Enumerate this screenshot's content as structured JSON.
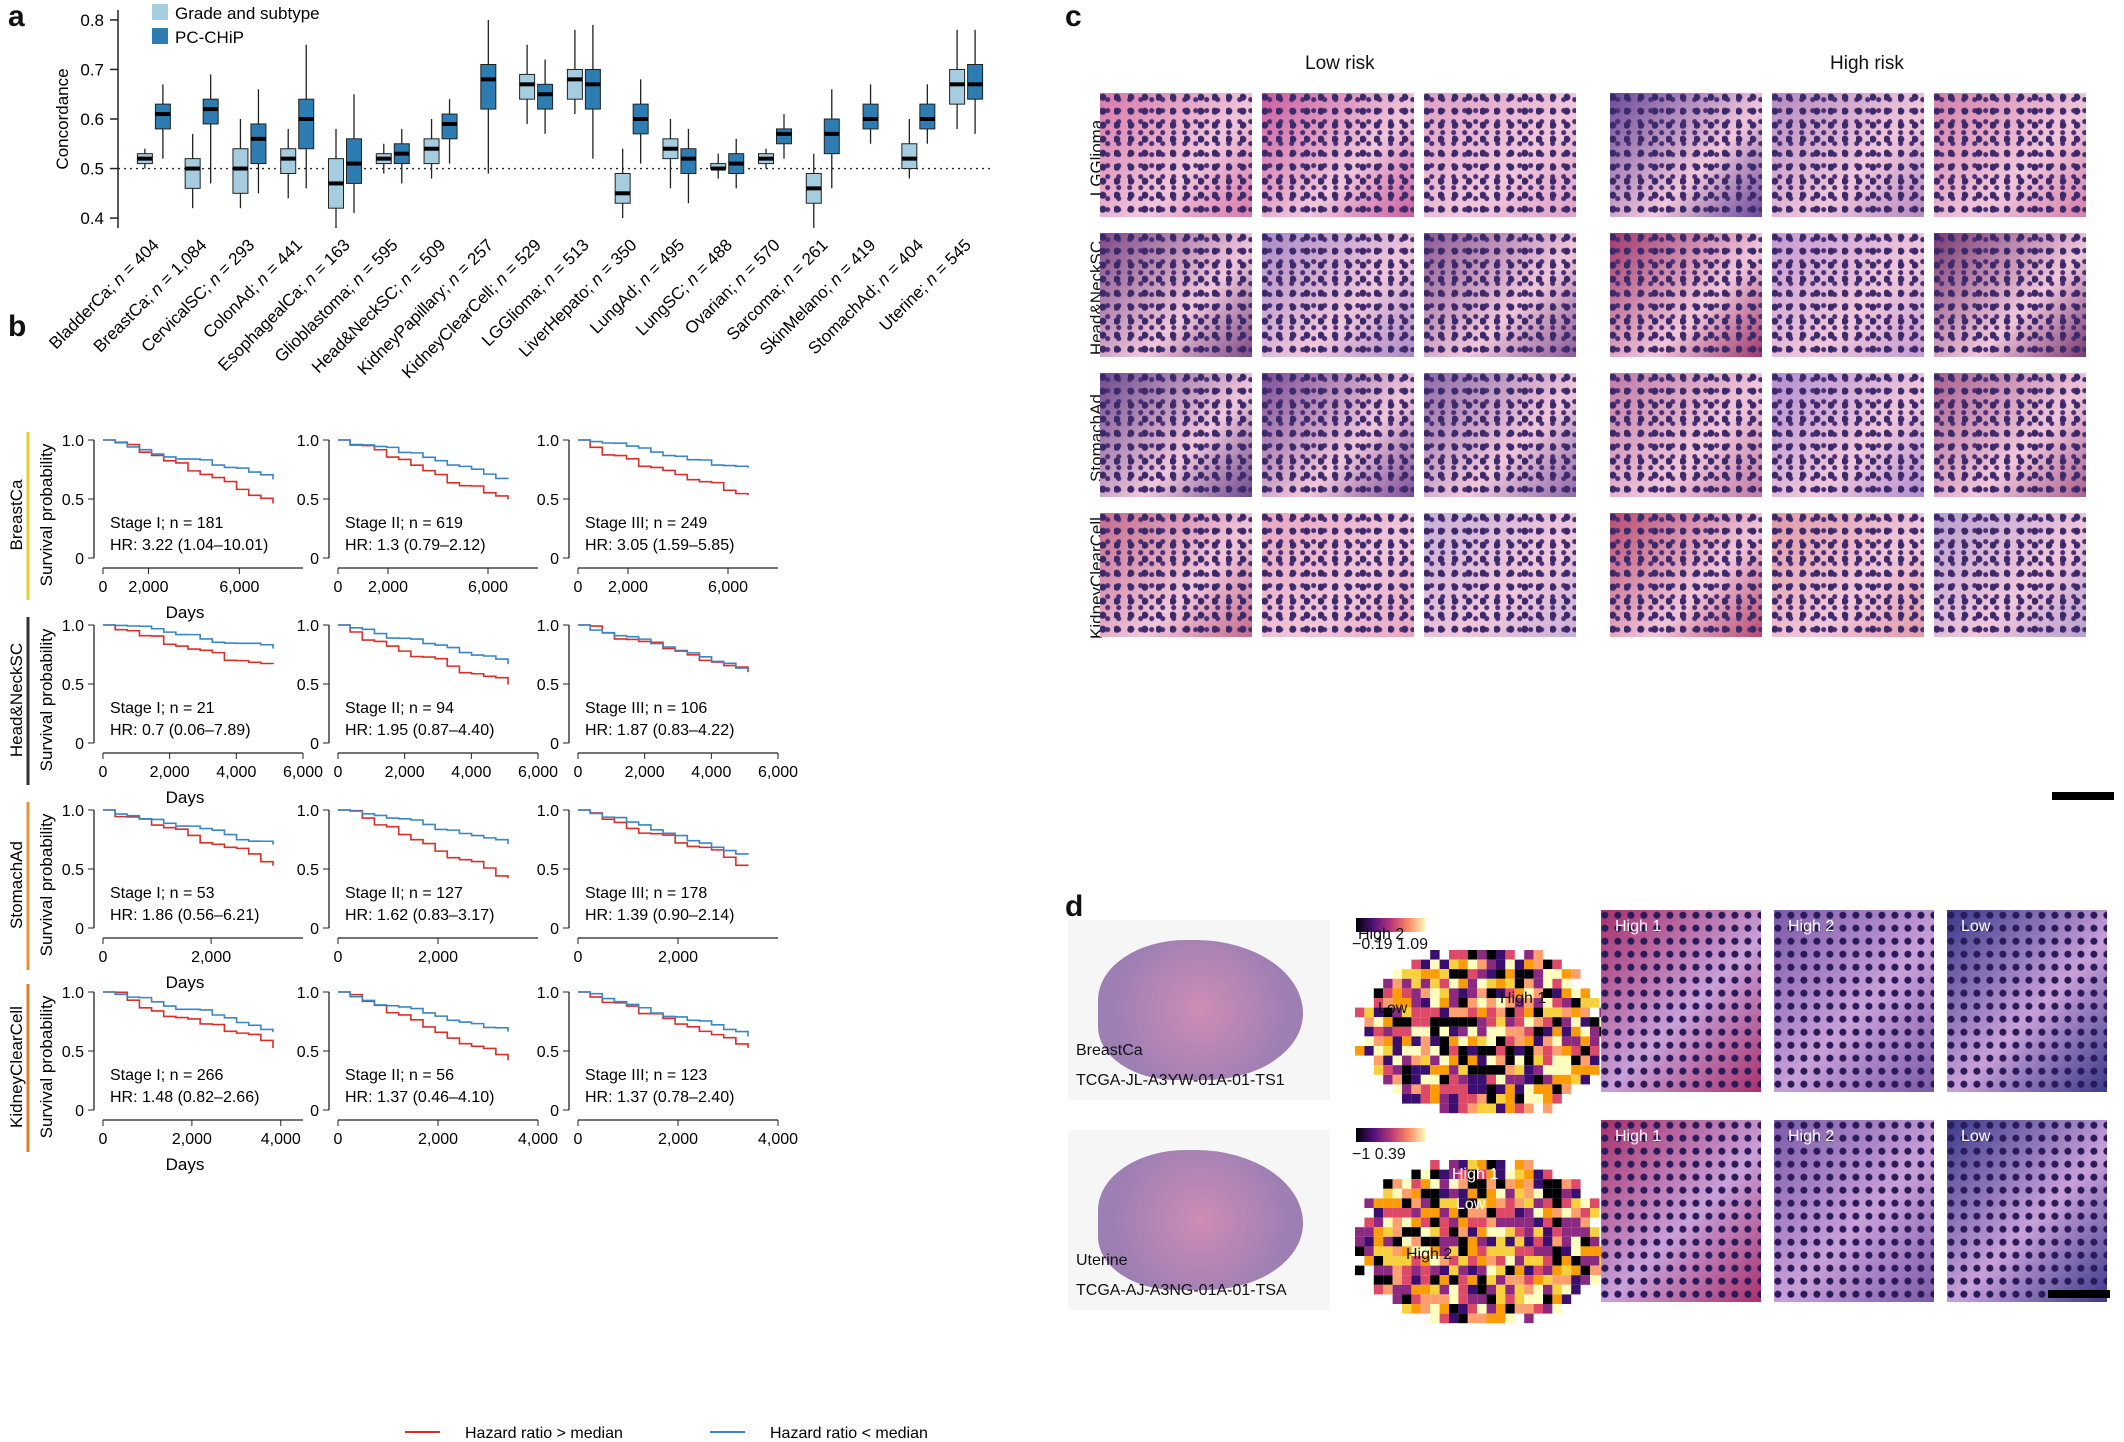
{
  "panels": {
    "a": "a",
    "b": "b",
    "c": "c",
    "d": "d"
  },
  "panel_a": {
    "chart_data": {
      "type": "box",
      "ylabel": "Concordance",
      "ylim": [
        0.38,
        0.82
      ],
      "yticks": [
        "0.4",
        "0.5",
        "0.6",
        "0.7",
        "0.8"
      ],
      "yticks_values": [
        0.4,
        0.5,
        0.6,
        0.7,
        0.8
      ],
      "reference_line": 0.5,
      "legend": [
        "Grade and subtype",
        "PC-CHiP"
      ],
      "colors": {
        "grade": "#a6cce0",
        "pcchip": "#2d7cb2"
      },
      "categories": [
        "BladderCa",
        "BreastCa",
        "CervicalSC",
        "ColonAd",
        "EsophagealCa",
        "Glioblastoma",
        "Head&NeckSC",
        "KidneyPapillary",
        "KidneyClearCell",
        "LGGlioma",
        "LiverHepato",
        "LungAd",
        "LungSC",
        "Ovarian",
        "Sarcoma",
        "SkinMelano",
        "StomachAd",
        "Uterine"
      ],
      "labels": [
        "BladderCa; n = 404",
        "BreastCa; n = 1,084",
        "CervicalSC; n = 293",
        "ColonAd; n = 441",
        "EsophagealCa; n = 163",
        "Glioblastoma; n = 595",
        "Head&NeckSC; n = 509",
        "KidneyPapillary; n = 257",
        "KidneyClearCell; n = 529",
        "LGGlioma; n = 513",
        "LiverHepato; n = 350",
        "LungAd; n = 495",
        "LungSC; n = 488",
        "Ovarian; n = 570",
        "Sarcoma; n = 261",
        "SkinMelano; n = 419",
        "StomachAd; n = 404",
        "Uterine; n = 545"
      ],
      "grade": [
        [
          0.5,
          0.51,
          0.52,
          0.53,
          0.54
        ],
        [
          0.42,
          0.46,
          0.5,
          0.52,
          0.57
        ],
        [
          0.42,
          0.45,
          0.5,
          0.54,
          0.6
        ],
        [
          0.44,
          0.49,
          0.52,
          0.54,
          0.58
        ],
        [
          0.38,
          0.42,
          0.47,
          0.52,
          0.58
        ],
        [
          0.49,
          0.51,
          0.52,
          0.53,
          0.55
        ],
        [
          0.48,
          0.51,
          0.54,
          0.56,
          0.6
        ],
        null,
        [
          0.59,
          0.64,
          0.67,
          0.69,
          0.75
        ],
        [
          0.61,
          0.64,
          0.68,
          0.7,
          0.78
        ],
        [
          0.4,
          0.43,
          0.45,
          0.49,
          0.54
        ],
        [
          0.46,
          0.52,
          0.54,
          0.56,
          0.6
        ],
        [
          0.48,
          0.5,
          0.5,
          0.51,
          0.53
        ],
        [
          0.5,
          0.51,
          0.52,
          0.53,
          0.54
        ],
        [
          0.38,
          0.43,
          0.46,
          0.49,
          0.53
        ],
        null,
        [
          0.48,
          0.5,
          0.52,
          0.55,
          0.6
        ],
        [
          0.58,
          0.63,
          0.67,
          0.7,
          0.78
        ]
      ],
      "pcchip": [
        [
          0.52,
          0.58,
          0.61,
          0.63,
          0.67
        ],
        [
          0.47,
          0.59,
          0.62,
          0.64,
          0.69
        ],
        [
          0.45,
          0.51,
          0.56,
          0.59,
          0.66
        ],
        [
          0.46,
          0.54,
          0.6,
          0.64,
          0.75
        ],
        [
          0.41,
          0.47,
          0.51,
          0.56,
          0.65
        ],
        [
          0.47,
          0.51,
          0.53,
          0.55,
          0.58
        ],
        [
          0.51,
          0.56,
          0.59,
          0.61,
          0.64
        ],
        [
          0.49,
          0.62,
          0.68,
          0.71,
          0.8
        ],
        [
          0.57,
          0.62,
          0.65,
          0.67,
          0.72
        ],
        [
          0.52,
          0.62,
          0.67,
          0.7,
          0.79
        ],
        [
          0.51,
          0.57,
          0.6,
          0.63,
          0.68
        ],
        [
          0.43,
          0.49,
          0.52,
          0.54,
          0.58
        ],
        [
          0.46,
          0.49,
          0.51,
          0.53,
          0.56
        ],
        [
          0.52,
          0.55,
          0.57,
          0.58,
          0.61
        ],
        [
          0.46,
          0.53,
          0.57,
          0.6,
          0.66
        ],
        [
          0.55,
          0.58,
          0.6,
          0.63,
          0.67
        ],
        [
          0.55,
          0.58,
          0.6,
          0.63,
          0.67
        ],
        [
          0.57,
          0.64,
          0.67,
          0.71,
          0.78
        ]
      ]
    }
  },
  "panel_b": {
    "rows": [
      {
        "label": "BreastCa",
        "color": "#e3cf35",
        "charts": [
          {
            "caption": "Stage I; ",
            "n": "n = 181",
            "hr": "HR: 3.22 (1.04–10.01)",
            "xticks": [
              "0",
              "2,000",
              "6,000"
            ],
            "xvals": [
              0,
              2000,
              6000
            ],
            "xmax": 8800
          },
          {
            "caption": "Stage II; ",
            "n": "n = 619",
            "hr": "HR: 1.3 (0.79–2.12)",
            "xticks": [
              "0",
              "2,000",
              "6,000"
            ],
            "xvals": [
              0,
              2000,
              6000
            ],
            "xmax": 8000
          },
          {
            "caption": "Stage III; ",
            "n": "n = 249",
            "hr": "HR: 3.05 (1.59–5.85)",
            "xticks": [
              "0",
              "2,000",
              "6,000"
            ],
            "xvals": [
              0,
              2000,
              6000
            ],
            "xmax": 8000
          }
        ]
      },
      {
        "label": "Head&NeckSC",
        "color": "#333333",
        "charts": [
          {
            "caption": "Stage I; ",
            "n": "n = 21",
            "hr": "HR: 0.7 (0.06–7.89)",
            "xticks": [
              "0",
              "2,000",
              "4,000",
              "6,000"
            ],
            "xvals": [
              0,
              2000,
              4000,
              6000
            ],
            "xmax": 6000
          },
          {
            "caption": "Stage II; ",
            "n": "n = 94",
            "hr": "HR: 1.95 (0.87–4.40)",
            "xticks": [
              "0",
              "2,000",
              "4,000",
              "6,000"
            ],
            "xvals": [
              0,
              2000,
              4000,
              6000
            ],
            "xmax": 6000
          },
          {
            "caption": "Stage III; ",
            "n": "n = 106",
            "hr": "HR: 1.87 (0.83–4.22)",
            "xticks": [
              "0",
              "2,000",
              "4,000",
              "6,000"
            ],
            "xvals": [
              0,
              2000,
              4000,
              6000
            ],
            "xmax": 6000
          }
        ]
      },
      {
        "label": "StomachAd",
        "color": "#e8913a",
        "charts": [
          {
            "caption": "Stage I; ",
            "n": "n = 53",
            "hr": "HR: 1.86 (0.56–6.21)",
            "xticks": [
              "0",
              "2,000"
            ],
            "xvals": [
              0,
              2000
            ],
            "xmax": 3700
          },
          {
            "caption": "Stage II; ",
            "n": "n = 127",
            "hr": "HR: 1.62 (0.83–3.17)",
            "xticks": [
              "0",
              "2,000"
            ],
            "xvals": [
              0,
              2000
            ],
            "xmax": 4000
          },
          {
            "caption": "Stage III; ",
            "n": "n = 178",
            "hr": "HR: 1.39 (0.90–2.14)",
            "xticks": [
              "0",
              "2,000"
            ],
            "xvals": [
              0,
              2000
            ],
            "xmax": 4000
          }
        ]
      },
      {
        "label": "KidneyClearCell",
        "color": "#e07c2d",
        "charts": [
          {
            "caption": "Stage I; ",
            "n": "n = 266",
            "hr": "HR: 1.48 (0.82–2.66)",
            "xticks": [
              "0",
              "2,000",
              "4,000"
            ],
            "xvals": [
              0,
              2000,
              4000
            ],
            "xmax": 4500
          },
          {
            "caption": "Stage II; ",
            "n": "n = 56",
            "hr": "HR: 1.37 (0.46–4.10)",
            "xticks": [
              "0",
              "2,000",
              "4,000"
            ],
            "xvals": [
              0,
              2000,
              4000
            ],
            "xmax": 4000
          },
          {
            "caption": "Stage III; ",
            "n": "n = 123",
            "hr": "HR: 1.37 (0.78–2.40)",
            "xticks": [
              "0",
              "2,000",
              "4,000"
            ],
            "xvals": [
              0,
              2000,
              4000
            ],
            "xmax": 4000
          }
        ]
      }
    ],
    "ylabel": "Survival probability",
    "xlabel": "Days",
    "yticks": [
      "0",
      "0.5",
      "1.0"
    ],
    "legend_red": "Hazard ratio > median",
    "legend_blue": "Hazard ratio < median"
  },
  "panel_c": {
    "col_low": "Low risk",
    "col_high": "High risk",
    "rows": [
      "LGGlioma",
      "Head&NeckSC",
      "StomachAd",
      "KidneyClearCell"
    ]
  },
  "panel_d": {
    "rows": [
      {
        "tissue": "BreastCa",
        "sample": "TCGA-JL-A3YW-01A-01-TS1",
        "cb_min": "−0.19",
        "cb_max": "1.09",
        "box_labels": [
          "High 2",
          "High 1",
          "Low"
        ],
        "tiles": [
          "High 1",
          "High 2",
          "Low"
        ]
      },
      {
        "tissue": "Uterine",
        "sample": "TCGA-AJ-A3NG-01A-01-TSA",
        "cb_min": "−1",
        "cb_max": "0.39",
        "box_labels": [
          "High 1",
          "Low",
          "High 2"
        ],
        "tiles": [
          "High 1",
          "High 2",
          "Low"
        ]
      }
    ]
  }
}
